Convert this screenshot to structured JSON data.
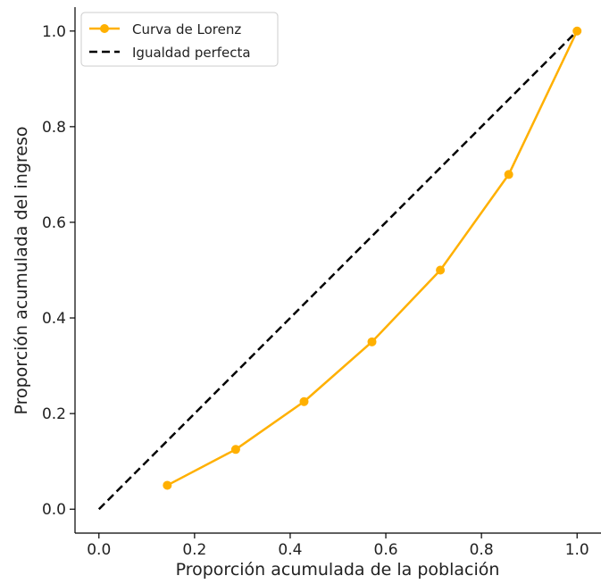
{
  "chart_data": {
    "type": "line",
    "title": "",
    "xlabel": "Proporción acumulada de la población",
    "ylabel": "Proporción acumulada del ingreso",
    "xlim": [
      -0.05,
      1.05
    ],
    "ylim": [
      -0.05,
      1.05
    ],
    "x_ticks": [
      0.0,
      0.2,
      0.4,
      0.6,
      0.8,
      1.0
    ],
    "y_ticks": [
      0.0,
      0.2,
      0.4,
      0.6,
      0.8,
      1.0
    ],
    "x_tick_labels": [
      "0.0",
      "0.2",
      "0.4",
      "0.6",
      "0.8",
      "1.0"
    ],
    "y_tick_labels": [
      "0.0",
      "0.2",
      "0.4",
      "0.6",
      "0.8",
      "1.0"
    ],
    "grid": false,
    "legend_position": "top-left",
    "series": [
      {
        "name": "Curva de Lorenz",
        "style": "solid",
        "marker": "circle",
        "color": "#FFB000",
        "x": [
          0.143,
          0.286,
          0.429,
          0.571,
          0.714,
          0.857,
          1.0
        ],
        "y": [
          0.05,
          0.125,
          0.225,
          0.35,
          0.5,
          0.7,
          1.0
        ]
      },
      {
        "name": "Igualdad perfecta",
        "style": "dashed",
        "marker": "none",
        "color": "#000000",
        "x": [
          0.0,
          1.0
        ],
        "y": [
          0.0,
          1.0
        ]
      }
    ]
  }
}
